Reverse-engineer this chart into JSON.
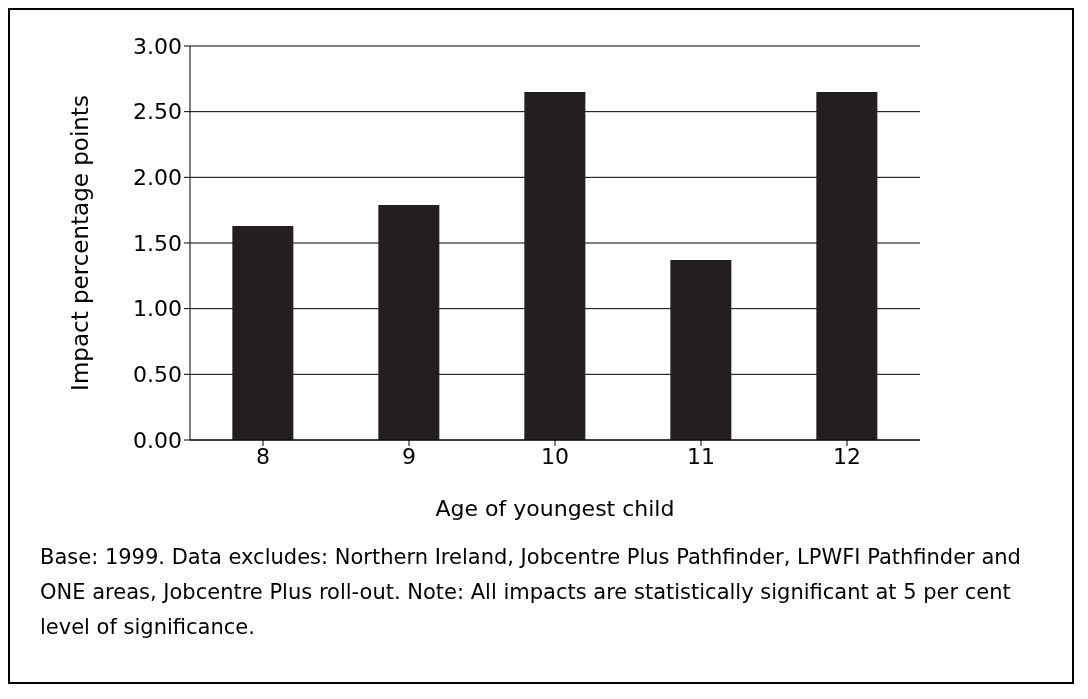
{
  "chart_data": {
    "type": "bar",
    "xlabel": "Age of youngest child",
    "ylabel": "Impact percentage points",
    "categories": [
      "8",
      "9",
      "10",
      "11",
      "12"
    ],
    "values": [
      1.63,
      1.79,
      2.65,
      1.37,
      2.65
    ],
    "color": "#231f20",
    "ylim": [
      0,
      3
    ],
    "yticks": [
      {
        "value": 0,
        "label": "0.00"
      },
      {
        "value": 0.5,
        "label": "0.50"
      },
      {
        "value": 1,
        "label": "1.00"
      },
      {
        "value": 1.5,
        "label": "1.50"
      },
      {
        "value": 2,
        "label": "2.00"
      },
      {
        "value": 2.5,
        "label": "2.50"
      },
      {
        "value": 3,
        "label": "3.00"
      }
    ],
    "grid": "y",
    "annotations": [
      "Base: 1999. Data excludes: Northern Ireland, Jobcentre Plus Pathfinder, LPWFI Pathfinder and ONE areas, Jobcentre Plus roll-out. Note: All impacts are statistically significant at 5 per cent level of significance."
    ]
  }
}
